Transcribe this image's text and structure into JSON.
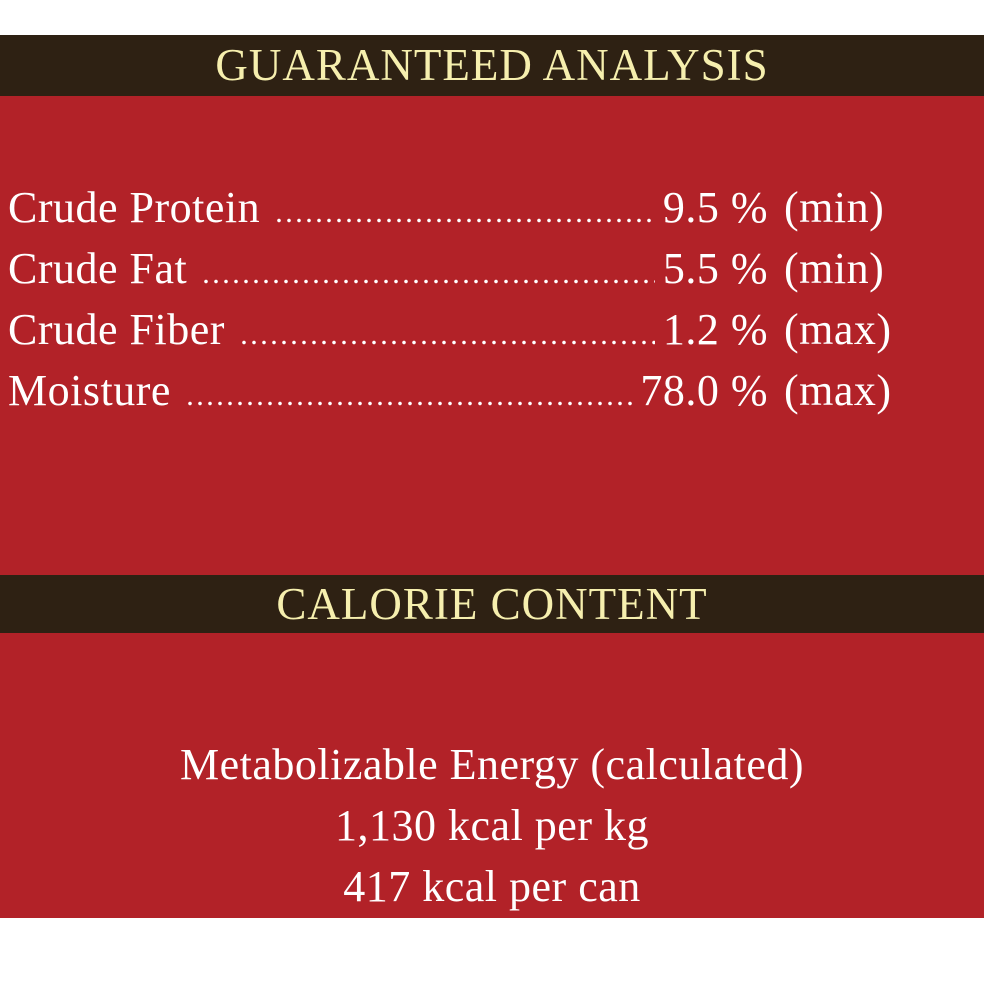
{
  "guaranteed_analysis": {
    "title": "GUARANTEED ANALYSIS",
    "rows": [
      {
        "label": "Crude Protein",
        "value": "9.5 %",
        "unit": "(min)"
      },
      {
        "label": "Crude Fat",
        "value": "5.5 %",
        "unit": "(min)"
      },
      {
        "label": "Crude Fiber",
        "value": "1.2 %",
        "unit": "(max)"
      },
      {
        "label": "Moisture",
        "value": "78.0 %",
        "unit": "(max)"
      }
    ]
  },
  "calorie_content": {
    "title": "CALORIE CONTENT",
    "lines": [
      "Metabolizable Energy (calculated)",
      "1,130 kcal per kg",
      "417 kcal per can"
    ]
  }
}
